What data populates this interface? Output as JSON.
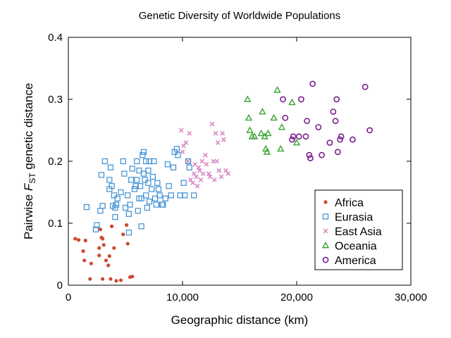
{
  "chart_data": {
    "type": "scatter",
    "title": "Genetic Diversity of Worldwide Populations",
    "xlabel": "Geographic distance (km)",
    "ylabel_parts": {
      "pre": "Pairwise ",
      "italic": "F",
      "sub": "ST",
      "post": " genetic distance"
    },
    "xlim": [
      0,
      30000
    ],
    "ylim": [
      0,
      0.4
    ],
    "x_ticks": [
      0,
      10000,
      20000,
      30000
    ],
    "x_tick_labels": [
      "0",
      "10,000",
      "20,000",
      "30,000"
    ],
    "y_ticks": [
      0,
      0.1,
      0.2,
      0.3,
      0.4
    ],
    "y_tick_labels": [
      "0",
      "0.1",
      "0.2",
      "0.3",
      "0.4"
    ],
    "legend_position": "lower-right",
    "series": [
      {
        "name": "Africa",
        "marker": "dot",
        "color": "#cc4a2f",
        "points": [
          [
            600,
            0.075
          ],
          [
            900,
            0.073
          ],
          [
            1300,
            0.055
          ],
          [
            1400,
            0.04
          ],
          [
            1500,
            0.072
          ],
          [
            1900,
            0.01
          ],
          [
            2000,
            0.035
          ],
          [
            2700,
            0.048
          ],
          [
            2700,
            0.06
          ],
          [
            2800,
            0.09
          ],
          [
            2900,
            0.077
          ],
          [
            3000,
            0.075
          ],
          [
            3000,
            0.01
          ],
          [
            3100,
            0.065
          ],
          [
            3300,
            0.04
          ],
          [
            3500,
            0.032
          ],
          [
            3600,
            0.047
          ],
          [
            3700,
            0.01
          ],
          [
            3800,
            0.095
          ],
          [
            4000,
            0.06
          ],
          [
            4200,
            0.007
          ],
          [
            4600,
            0.008
          ],
          [
            4800,
            0.082
          ],
          [
            5100,
            0.097
          ],
          [
            5200,
            0.067
          ],
          [
            5400,
            0.013
          ],
          [
            5600,
            0.014
          ]
        ]
      },
      {
        "name": "Eurasia",
        "marker": "square",
        "color": "#3b8fd4",
        "points": [
          [
            1600,
            0.126
          ],
          [
            2400,
            0.09
          ],
          [
            2500,
            0.097
          ],
          [
            2800,
            0.12
          ],
          [
            2900,
            0.178
          ],
          [
            3000,
            0.128
          ],
          [
            3200,
            0.2
          ],
          [
            3600,
            0.155
          ],
          [
            3600,
            0.17
          ],
          [
            3700,
            0.19
          ],
          [
            3800,
            0.16
          ],
          [
            3900,
            0.128
          ],
          [
            4000,
            0.145
          ],
          [
            4100,
            0.11
          ],
          [
            4100,
            0.125
          ],
          [
            4200,
            0.13
          ],
          [
            4300,
            0.14
          ],
          [
            4600,
            0.15
          ],
          [
            4800,
            0.2
          ],
          [
            4900,
            0.18
          ],
          [
            5000,
            0.125
          ],
          [
            5200,
            0.145
          ],
          [
            5300,
            0.085
          ],
          [
            5300,
            0.115
          ],
          [
            5400,
            0.13
          ],
          [
            5500,
            0.17
          ],
          [
            5600,
            0.188
          ],
          [
            5800,
            0.155
          ],
          [
            5900,
            0.16
          ],
          [
            6000,
            0.17
          ],
          [
            6000,
            0.2
          ],
          [
            6100,
            0.12
          ],
          [
            6200,
            0.14
          ],
          [
            6200,
            0.185
          ],
          [
            6300,
            0.16
          ],
          [
            6400,
            0.095
          ],
          [
            6400,
            0.14
          ],
          [
            6500,
            0.21
          ],
          [
            6600,
            0.215
          ],
          [
            6600,
            0.18
          ],
          [
            6700,
            0.17
          ],
          [
            6800,
            0.145
          ],
          [
            6800,
            0.2
          ],
          [
            6900,
            0.125
          ],
          [
            7000,
            0.165
          ],
          [
            7000,
            0.185
          ],
          [
            7100,
            0.2
          ],
          [
            7100,
            0.135
          ],
          [
            7300,
            0.155
          ],
          [
            7400,
            0.175
          ],
          [
            7500,
            0.2
          ],
          [
            7600,
            0.14
          ],
          [
            7700,
            0.13
          ],
          [
            7800,
            0.165
          ],
          [
            7900,
            0.155
          ],
          [
            8000,
            0.145
          ],
          [
            8200,
            0.13
          ],
          [
            8300,
            0.13
          ],
          [
            8500,
            0.14
          ],
          [
            8700,
            0.195
          ],
          [
            8800,
            0.16
          ],
          [
            9000,
            0.145
          ],
          [
            9200,
            0.19
          ],
          [
            9300,
            0.215
          ],
          [
            9500,
            0.22
          ],
          [
            9600,
            0.21
          ],
          [
            9800,
            0.145
          ],
          [
            10100,
            0.165
          ],
          [
            10200,
            0.145
          ],
          [
            10500,
            0.2
          ],
          [
            10600,
            0.19
          ],
          [
            11000,
            0.145
          ]
        ]
      },
      {
        "name": "East Asia",
        "marker": "cross",
        "color": "#d98ac4",
        "points": [
          [
            9900,
            0.25
          ],
          [
            10000,
            0.215
          ],
          [
            10100,
            0.225
          ],
          [
            10300,
            0.23
          ],
          [
            10500,
            0.2
          ],
          [
            10600,
            0.245
          ],
          [
            10700,
            0.17
          ],
          [
            10900,
            0.165
          ],
          [
            11000,
            0.18
          ],
          [
            11100,
            0.195
          ],
          [
            11200,
            0.175
          ],
          [
            11300,
            0.16
          ],
          [
            11400,
            0.19
          ],
          [
            11500,
            0.185
          ],
          [
            11600,
            0.17
          ],
          [
            11700,
            0.2
          ],
          [
            11800,
            0.18
          ],
          [
            12000,
            0.21
          ],
          [
            12100,
            0.195
          ],
          [
            12300,
            0.18
          ],
          [
            12400,
            0.175
          ],
          [
            12600,
            0.26
          ],
          [
            12700,
            0.2
          ],
          [
            12800,
            0.17
          ],
          [
            12900,
            0.245
          ],
          [
            13000,
            0.2
          ],
          [
            13100,
            0.23
          ],
          [
            13200,
            0.185
          ],
          [
            13400,
            0.175
          ],
          [
            13500,
            0.245
          ],
          [
            13600,
            0.235
          ],
          [
            13800,
            0.185
          ],
          [
            14000,
            0.18
          ]
        ]
      },
      {
        "name": "Oceania",
        "marker": "triangle",
        "color": "#3aa332",
        "points": [
          [
            15700,
            0.3
          ],
          [
            15800,
            0.27
          ],
          [
            15900,
            0.25
          ],
          [
            16100,
            0.24
          ],
          [
            16300,
            0.24
          ],
          [
            16900,
            0.245
          ],
          [
            17000,
            0.28
          ],
          [
            17200,
            0.24
          ],
          [
            17300,
            0.22
          ],
          [
            17400,
            0.215
          ],
          [
            17500,
            0.245
          ],
          [
            18000,
            0.27
          ],
          [
            18300,
            0.315
          ],
          [
            18600,
            0.22
          ],
          [
            18700,
            0.255
          ],
          [
            19600,
            0.295
          ],
          [
            20000,
            0.23
          ]
        ]
      },
      {
        "name": "America",
        "marker": "circle",
        "color": "#7a1f8c",
        "points": [
          [
            18800,
            0.3
          ],
          [
            19000,
            0.27
          ],
          [
            19600,
            0.235
          ],
          [
            19700,
            0.24
          ],
          [
            20200,
            0.24
          ],
          [
            20400,
            0.3
          ],
          [
            20800,
            0.24
          ],
          [
            20900,
            0.265
          ],
          [
            21100,
            0.21
          ],
          [
            21200,
            0.205
          ],
          [
            21400,
            0.325
          ],
          [
            21900,
            0.255
          ],
          [
            22200,
            0.21
          ],
          [
            22900,
            0.23
          ],
          [
            23200,
            0.28
          ],
          [
            23400,
            0.265
          ],
          [
            23500,
            0.3
          ],
          [
            23600,
            0.215
          ],
          [
            23800,
            0.235
          ],
          [
            23900,
            0.24
          ],
          [
            24900,
            0.235
          ],
          [
            26000,
            0.32
          ],
          [
            26400,
            0.25
          ]
        ]
      }
    ]
  }
}
